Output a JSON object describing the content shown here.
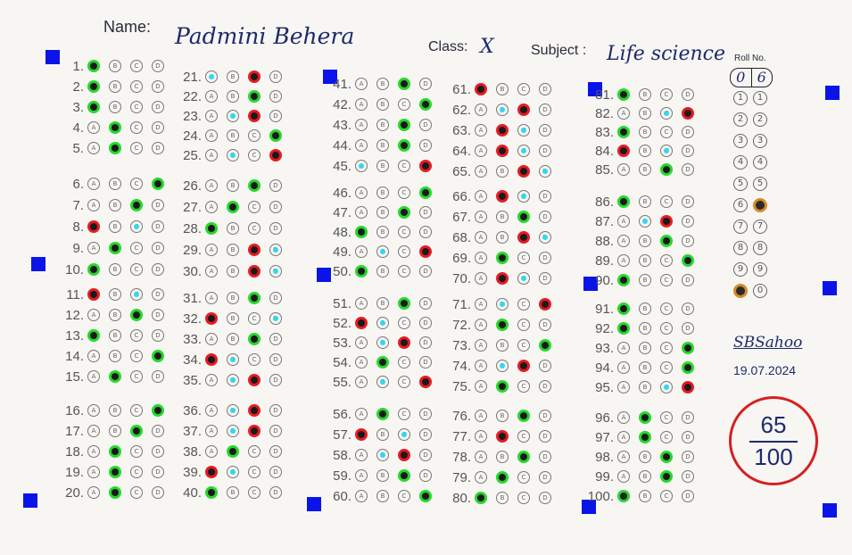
{
  "header": {
    "name_label": "Name:",
    "name_value": "Padmini Behera",
    "class_label": "Class:",
    "class_value": "X",
    "subject_label": "Subject :",
    "subject_value": "Life science",
    "roll_label": "Roll No."
  },
  "roll": {
    "digits": [
      "0",
      "6"
    ],
    "options": [
      "1",
      "2",
      "3",
      "4",
      "5",
      "6",
      "7",
      "8",
      "9",
      "0"
    ],
    "filled": [
      "0",
      "6"
    ]
  },
  "signature": "SBSahoo",
  "date": "19.07.2024",
  "score": {
    "numerator": "65",
    "denominator": "100"
  },
  "option_letters": [
    "A",
    "B",
    "C",
    "D"
  ],
  "answers": {
    "1": "gA",
    "2": "gA",
    "3": "gA",
    "4": "gB",
    "5": "gB",
    "6": "gD",
    "7": "gC",
    "8": "rA cC",
    "9": "gB",
    "10": "gA",
    "11": "rA cC",
    "12": "gC",
    "13": "gA",
    "14": "gD",
    "15": "gB",
    "16": "gD",
    "17": "gC",
    "18": "gB",
    "19": "gB",
    "20": "gB",
    "21": "cA rC",
    "22": "gC",
    "23": "cB rC",
    "24": "gD",
    "25": "cB rD",
    "26": "gC",
    "27": "gB",
    "28": "gA",
    "29": "rC cD",
    "30": "rC cD",
    "31": "gC",
    "32": "rA cD",
    "33": "gC",
    "34": "rA cB",
    "35": "cB rC",
    "36": "cB rC",
    "37": "cB rC",
    "38": "gB",
    "39": "rA cB",
    "40": "gA",
    "41": "gC",
    "42": "gD",
    "43": "gC",
    "44": "gC",
    "45": "cA rD",
    "46": "gD",
    "47": "gC",
    "48": "gA",
    "49": "cB rD",
    "50": "gA",
    "51": "gC",
    "52": "rA cB",
    "53": "cB rC",
    "54": "gB",
    "55": "cB rD",
    "56": "gB",
    "57": "rA cC",
    "58": "cB rC",
    "59": "gC",
    "60": "gD",
    "61": "rA",
    "62": "cB rC",
    "63": "rB cC",
    "64": "rB cC",
    "65": "rC cD",
    "66": "rB cC",
    "67": "gC",
    "68": "rC cD",
    "69": "gB",
    "70": "rB cC",
    "71": "cB rD",
    "72": "gB",
    "73": "gD",
    "74": "cB rC",
    "75": "gB",
    "76": "gC",
    "77": "rB",
    "78": "gC",
    "79": "gB",
    "80": "gA",
    "81": "gA",
    "82": "cC rD",
    "83": "gA",
    "84": "rA cC",
    "85": "gC",
    "86": "gA",
    "87": "cB rC",
    "88": "gC",
    "89": "gD",
    "90": "gA",
    "91": "gA",
    "92": "gA",
    "93": "gD",
    "94": "gD",
    "95": "cC rD",
    "96": "gB",
    "97": "gB",
    "98": "gC",
    "99": "gC",
    "100": "gA"
  }
}
